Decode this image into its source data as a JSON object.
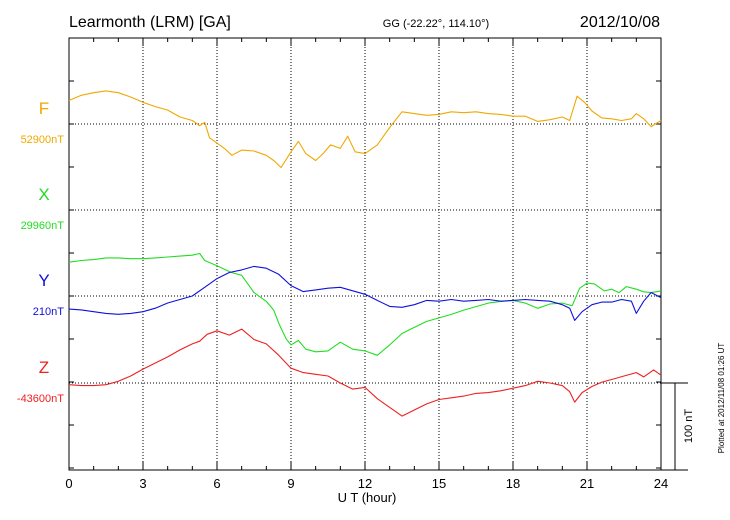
{
  "header": {
    "station": "Learmonth (LRM)  [GA]",
    "coords": "GG (-22.22°, 114.10°)",
    "date": "2012/10/08"
  },
  "side_note": "Plotted at 2012/11/08 01:26 UT",
  "scale_bar_label": "100 nT",
  "chart_data": {
    "type": "line",
    "title": "",
    "xlabel": "U T (hour)",
    "ylabel": "",
    "xlim": [
      0,
      24
    ],
    "xticks": [
      0,
      3,
      6,
      9,
      12,
      15,
      18,
      21,
      24
    ],
    "units": "nT",
    "scale_bar_nT": 100,
    "grid": true,
    "series": [
      {
        "name": "F",
        "baseline_label": "52900nT",
        "color": "#f0a800",
        "baseline_nT": 52900,
        "points": [
          [
            0,
            52927
          ],
          [
            0.5,
            52933
          ],
          [
            1,
            52936
          ],
          [
            1.5,
            52938
          ],
          [
            2,
            52936
          ],
          [
            2.5,
            52931
          ],
          [
            3,
            52925
          ],
          [
            3.5,
            52920
          ],
          [
            4,
            52916
          ],
          [
            4.5,
            52908
          ],
          [
            5,
            52904
          ],
          [
            5.3,
            52898
          ],
          [
            5.5,
            52902
          ],
          [
            5.7,
            52884
          ],
          [
            6,
            52878
          ],
          [
            6.3,
            52872
          ],
          [
            6.6,
            52864
          ],
          [
            7,
            52870
          ],
          [
            7.5,
            52869
          ],
          [
            8,
            52864
          ],
          [
            8.3,
            52858
          ],
          [
            8.6,
            52850
          ],
          [
            9,
            52868
          ],
          [
            9.3,
            52880
          ],
          [
            9.6,
            52866
          ],
          [
            10,
            52858
          ],
          [
            10.3,
            52866
          ],
          [
            10.6,
            52876
          ],
          [
            11,
            52872
          ],
          [
            11.3,
            52886
          ],
          [
            11.6,
            52868
          ],
          [
            12,
            52866
          ],
          [
            12.5,
            52876
          ],
          [
            13,
            52896
          ],
          [
            13.5,
            52914
          ],
          [
            14,
            52912
          ],
          [
            14.5,
            52910
          ],
          [
            15,
            52911
          ],
          [
            15.5,
            52914
          ],
          [
            16,
            52913
          ],
          [
            16.5,
            52914
          ],
          [
            17,
            52912
          ],
          [
            17.5,
            52911
          ],
          [
            18,
            52909
          ],
          [
            18.5,
            52909
          ],
          [
            19,
            52903
          ],
          [
            19.5,
            52905
          ],
          [
            20,
            52908
          ],
          [
            20.3,
            52904
          ],
          [
            20.6,
            52932
          ],
          [
            20.9,
            52925
          ],
          [
            21.2,
            52915
          ],
          [
            21.6,
            52907
          ],
          [
            22,
            52906
          ],
          [
            22.4,
            52904
          ],
          [
            22.8,
            52906
          ],
          [
            23,
            52912
          ],
          [
            23.3,
            52906
          ],
          [
            23.6,
            52897
          ],
          [
            24,
            52904
          ]
        ]
      },
      {
        "name": "X",
        "baseline_label": "29960nT",
        "color": "#22dd22",
        "baseline_nT": 29960,
        "points": [
          [
            0,
            29900
          ],
          [
            0.5,
            29902
          ],
          [
            1,
            29903
          ],
          [
            1.5,
            29905
          ],
          [
            2,
            29905
          ],
          [
            2.5,
            29904
          ],
          [
            3,
            29904
          ],
          [
            3.5,
            29905
          ],
          [
            4,
            29906
          ],
          [
            4.5,
            29907
          ],
          [
            5,
            29908
          ],
          [
            5.3,
            29910
          ],
          [
            5.5,
            29902
          ],
          [
            6,
            29896
          ],
          [
            6.3,
            29892
          ],
          [
            6.6,
            29888
          ],
          [
            7,
            29885
          ],
          [
            7.5,
            29865
          ],
          [
            8,
            29855
          ],
          [
            8.3,
            29845
          ],
          [
            8.5,
            29830
          ],
          [
            8.8,
            29812
          ],
          [
            9,
            29805
          ],
          [
            9.3,
            29810
          ],
          [
            9.6,
            29800
          ],
          [
            10,
            29797
          ],
          [
            10.5,
            29798
          ],
          [
            11,
            29808
          ],
          [
            11.5,
            29800
          ],
          [
            12,
            29798
          ],
          [
            12.5,
            29793
          ],
          [
            13,
            29805
          ],
          [
            13.5,
            29818
          ],
          [
            14,
            29825
          ],
          [
            14.5,
            29832
          ],
          [
            15,
            29836
          ],
          [
            15.5,
            29840
          ],
          [
            16,
            29845
          ],
          [
            16.5,
            29849
          ],
          [
            17,
            29853
          ],
          [
            17.5,
            29855
          ],
          [
            18,
            29856
          ],
          [
            18.5,
            29853
          ],
          [
            19,
            29847
          ],
          [
            19.5,
            29852
          ],
          [
            20,
            29853
          ],
          [
            20.4,
            29850
          ],
          [
            20.7,
            29870
          ],
          [
            21,
            29876
          ],
          [
            21.3,
            29875
          ],
          [
            21.7,
            29867
          ],
          [
            22,
            29869
          ],
          [
            22.3,
            29865
          ],
          [
            22.6,
            29872
          ],
          [
            23,
            29869
          ],
          [
            23.3,
            29866
          ],
          [
            23.6,
            29865
          ],
          [
            24,
            29867
          ]
        ]
      },
      {
        "name": "Y",
        "baseline_label": "210nT",
        "color": "#1010dd",
        "baseline_nT": 210,
        "points": [
          [
            0,
            195
          ],
          [
            0.5,
            194
          ],
          [
            1,
            192
          ],
          [
            1.5,
            190
          ],
          [
            2,
            189
          ],
          [
            2.5,
            190
          ],
          [
            3,
            192
          ],
          [
            3.5,
            196
          ],
          [
            4,
            202
          ],
          [
            4.5,
            206
          ],
          [
            5,
            210
          ],
          [
            5.5,
            220
          ],
          [
            6,
            230
          ],
          [
            6.5,
            237
          ],
          [
            7,
            240
          ],
          [
            7.5,
            244
          ],
          [
            8,
            242
          ],
          [
            8.5,
            235
          ],
          [
            9,
            222
          ],
          [
            9.5,
            215
          ],
          [
            10,
            217
          ],
          [
            10.5,
            219
          ],
          [
            11,
            220
          ],
          [
            11.5,
            216
          ],
          [
            12,
            212
          ],
          [
            12.5,
            205
          ],
          [
            13,
            198
          ],
          [
            13.5,
            197
          ],
          [
            14,
            200
          ],
          [
            14.5,
            205
          ],
          [
            15,
            204
          ],
          [
            15.5,
            206
          ],
          [
            16,
            204
          ],
          [
            16.5,
            205
          ],
          [
            17,
            206
          ],
          [
            17.5,
            204
          ],
          [
            18,
            205
          ],
          [
            18.5,
            206
          ],
          [
            19,
            205
          ],
          [
            19.5,
            204
          ],
          [
            20,
            200
          ],
          [
            20.3,
            196
          ],
          [
            20.5,
            182
          ],
          [
            20.8,
            192
          ],
          [
            21.2,
            200
          ],
          [
            21.6,
            203
          ],
          [
            22,
            203
          ],
          [
            22.4,
            206
          ],
          [
            22.8,
            204
          ],
          [
            23,
            190
          ],
          [
            23.3,
            204
          ],
          [
            23.6,
            214
          ],
          [
            24,
            208
          ]
        ]
      },
      {
        "name": "Z",
        "baseline_label": "-43600nT",
        "color": "#ee2020",
        "baseline_nT": -43600,
        "points": [
          [
            0,
            -43602
          ],
          [
            0.5,
            -43603
          ],
          [
            1,
            -43603
          ],
          [
            1.5,
            -43602
          ],
          [
            2,
            -43598
          ],
          [
            2.5,
            -43592
          ],
          [
            3,
            -43584
          ],
          [
            3.5,
            -43577
          ],
          [
            4,
            -43570
          ],
          [
            4.5,
            -43562
          ],
          [
            5,
            -43555
          ],
          [
            5.3,
            -43552
          ],
          [
            5.6,
            -43544
          ],
          [
            6,
            -43540
          ],
          [
            6.5,
            -43545
          ],
          [
            7,
            -43538
          ],
          [
            7.5,
            -43550
          ],
          [
            8,
            -43555
          ],
          [
            8.5,
            -43568
          ],
          [
            9,
            -43583
          ],
          [
            9.5,
            -43588
          ],
          [
            10,
            -43590
          ],
          [
            10.5,
            -43592
          ],
          [
            11,
            -43600
          ],
          [
            11.5,
            -43607
          ],
          [
            12,
            -43605
          ],
          [
            12.5,
            -43618
          ],
          [
            13,
            -43628
          ],
          [
            13.5,
            -43638
          ],
          [
            14,
            -43631
          ],
          [
            14.5,
            -43624
          ],
          [
            15,
            -43619
          ],
          [
            15.5,
            -43617
          ],
          [
            16,
            -43615
          ],
          [
            16.5,
            -43612
          ],
          [
            17,
            -43611
          ],
          [
            17.5,
            -43609
          ],
          [
            18,
            -43606
          ],
          [
            18.5,
            -43603
          ],
          [
            19,
            -43598
          ],
          [
            19.5,
            -43600
          ],
          [
            20,
            -43603
          ],
          [
            20.3,
            -43610
          ],
          [
            20.5,
            -43622
          ],
          [
            20.8,
            -43611
          ],
          [
            21.2,
            -43604
          ],
          [
            21.6,
            -43599
          ],
          [
            22,
            -43596
          ],
          [
            22.5,
            -43592
          ],
          [
            23,
            -43588
          ],
          [
            23.3,
            -43593
          ],
          [
            23.7,
            -43585
          ],
          [
            24,
            -43591
          ]
        ]
      }
    ]
  }
}
